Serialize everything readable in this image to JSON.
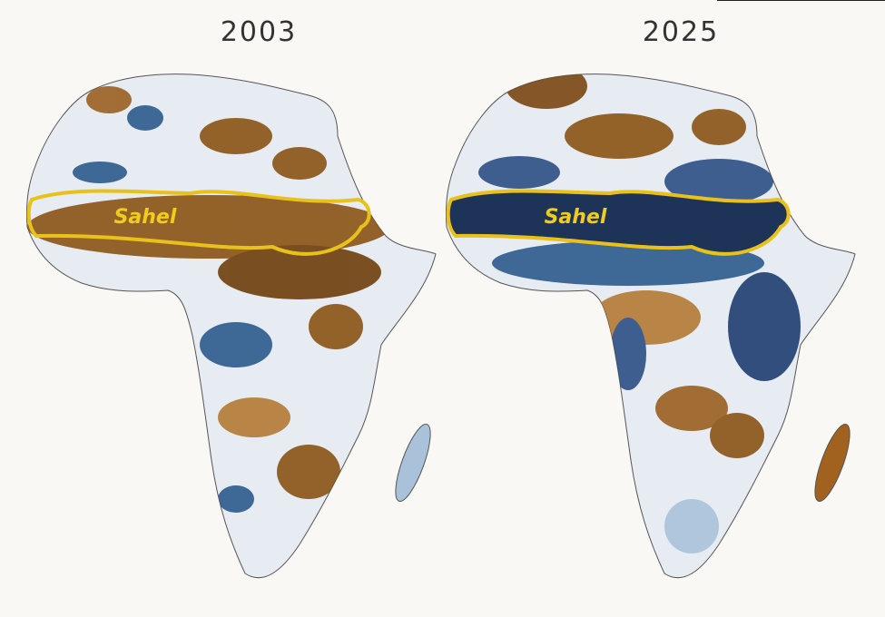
{
  "maps": [
    {
      "year": "2003",
      "label": "Sahel"
    },
    {
      "year": "2025",
      "label": "Sahel"
    }
  ]
}
